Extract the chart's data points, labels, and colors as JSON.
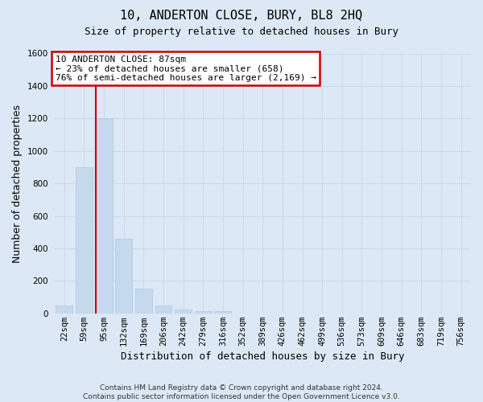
{
  "title": "10, ANDERTON CLOSE, BURY, BL8 2HQ",
  "subtitle": "Size of property relative to detached houses in Bury",
  "xlabel": "Distribution of detached houses by size in Bury",
  "ylabel": "Number of detached properties",
  "footer1": "Contains HM Land Registry data © Crown copyright and database right 2024.",
  "footer2": "Contains public sector information licensed under the Open Government Licence v3.0.",
  "categories": [
    "22sqm",
    "59sqm",
    "95sqm",
    "132sqm",
    "169sqm",
    "206sqm",
    "242sqm",
    "279sqm",
    "316sqm",
    "352sqm",
    "389sqm",
    "426sqm",
    "462sqm",
    "499sqm",
    "536sqm",
    "573sqm",
    "609sqm",
    "646sqm",
    "683sqm",
    "719sqm",
    "756sqm"
  ],
  "values": [
    50,
    900,
    1200,
    460,
    150,
    50,
    25,
    15,
    15,
    0,
    0,
    0,
    0,
    0,
    0,
    0,
    0,
    0,
    0,
    0,
    0
  ],
  "bar_color": "#c5d9ee",
  "bar_edge_color": "#afc8e0",
  "red_line_x": 1.575,
  "annotation_text_line1": "10 ANDERTON CLOSE: 87sqm",
  "annotation_text_line2": "← 23% of detached houses are smaller (658)",
  "annotation_text_line3": "76% of semi-detached houses are larger (2,169) →",
  "annotation_box_facecolor": "#ffffff",
  "annotation_box_edgecolor": "#cc0000",
  "ylim_max": 1600,
  "yticks": [
    0,
    200,
    400,
    600,
    800,
    1000,
    1200,
    1400,
    1600
  ],
  "grid_color": "#ccd8ea",
  "bg_color": "#dce8f5",
  "title_fontsize": 11,
  "subtitle_fontsize": 9,
  "ylabel_fontsize": 9,
  "xlabel_fontsize": 9,
  "tick_fontsize": 7.5,
  "annotation_fontsize": 8,
  "footer_fontsize": 6.5
}
